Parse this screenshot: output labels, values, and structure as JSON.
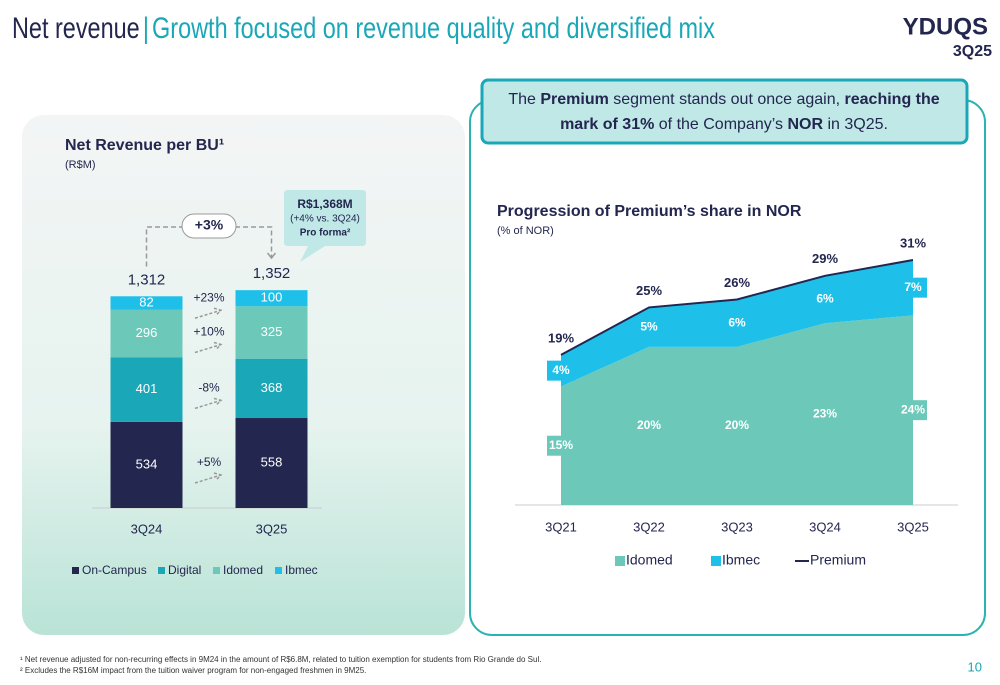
{
  "header": {
    "title": "Net revenue",
    "separator": "|",
    "subtitle": "Growth focused on revenue quality and diversified mix",
    "logo": "YDUQS",
    "period": "3Q25"
  },
  "callout": [
    "The ",
    "Premium",
    " segment stands out once again, ",
    "reaching the",
    "mark of 31%",
    " of the Company’s ",
    "NOR",
    " in 3Q25."
  ],
  "chart_data": [
    {
      "type": "bar",
      "stacked": true,
      "title": "Net Revenue per BU¹",
      "subtitle": "(R$M)",
      "categories": [
        "3Q24",
        "3Q25"
      ],
      "series": [
        {
          "name": "On-Campus",
          "color": "#23264f",
          "values": [
            534,
            558
          ]
        },
        {
          "name": "Digital",
          "color": "#1aa7b8",
          "values": [
            401,
            368
          ]
        },
        {
          "name": "Idomed",
          "color": "#6cc9b9",
          "values": [
            296,
            325
          ]
        },
        {
          "name": "Ibmec",
          "color": "#1ec0ea",
          "values": [
            82,
            100
          ]
        }
      ],
      "totals": [
        1312,
        1352
      ],
      "totals_labels": [
        "1,312",
        "1,352"
      ],
      "growth": "+3%",
      "segment_growth": [
        "+5%",
        "-8%",
        "+10%",
        "+23%"
      ],
      "note": [
        "R$1,368M",
        "(+4% vs. 3Q24)",
        "Pro forma²"
      ]
    },
    {
      "type": "area",
      "stacked": true,
      "title": "Progression of Premium’s share in NOR",
      "subtitle": "(% of NOR)",
      "categories": [
        "3Q21",
        "3Q22",
        "3Q23",
        "3Q24",
        "3Q25"
      ],
      "series": [
        {
          "name": "Idomed",
          "color": "#6cc9b9",
          "values": [
            15,
            20,
            20,
            23,
            24
          ],
          "value_labels": [
            "15%",
            "20%",
            "20%",
            "23%",
            "24%"
          ]
        },
        {
          "name": "Ibmec",
          "color": "#1ec0ea",
          "values": [
            4,
            5,
            6,
            6,
            7
          ],
          "value_labels": [
            "4%",
            "5%",
            "6%",
            "6%",
            "7%"
          ]
        },
        {
          "name": "Premium",
          "type": "line",
          "color": "#23264f",
          "values": [
            19,
            25,
            26,
            29,
            31
          ],
          "value_labels": [
            "19%",
            "25%",
            "26%",
            "29%",
            "31%"
          ]
        }
      ]
    }
  ],
  "footnotes": [
    "¹ Net revenue adjusted for non-recurring effects in 9M24 in the amount of R$6.8M, related to tuition exemption for students from Rio Grande do Sul.",
    "² Excludes the R$16M impact from the tuition waiver program for non-engaged freshmen in 9M25."
  ],
  "page_number": "10"
}
